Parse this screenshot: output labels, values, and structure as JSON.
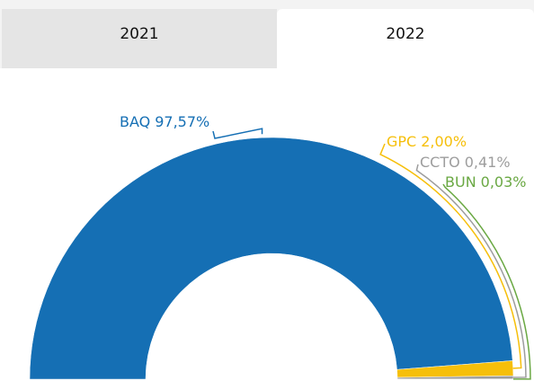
{
  "tabs": [
    "2021",
    "2022"
  ],
  "chart_data": {
    "type": "semi-donut",
    "categories": [
      "BAQ",
      "GPC",
      "CCTO",
      "BUN"
    ],
    "values": [
      97.57,
      2.0,
      0.41,
      0.03
    ],
    "value_labels": [
      "97,57%",
      "2,00%",
      "0,41%",
      "0,03%"
    ],
    "colors": [
      "#156fb4",
      "#f6bf0a",
      "#9d9d9d",
      "#6aa843"
    ]
  }
}
